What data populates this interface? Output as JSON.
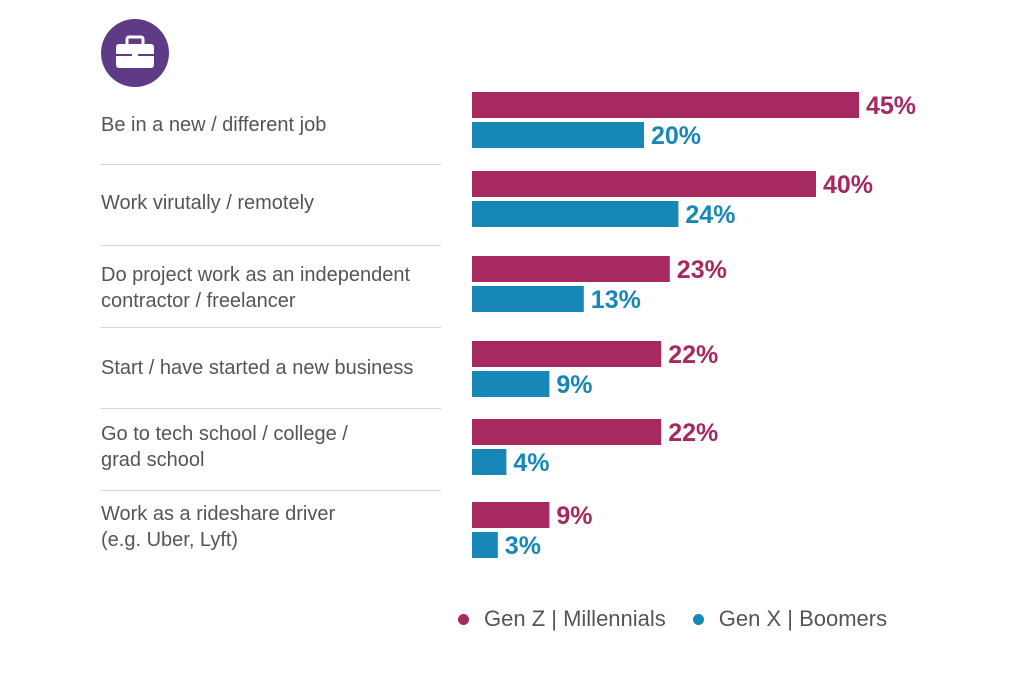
{
  "colors": {
    "series_a": "#a6295f",
    "series_b": "#1787b8",
    "icon_bg": "#5e3a87"
  },
  "icon": "briefcase-icon",
  "chart_data": {
    "type": "bar",
    "orientation": "horizontal",
    "categories": [
      "Be in a new / different job",
      "Work virutally / remotely",
      "Do project work as an independent\ncontractor / freelancer",
      "Start / have started a new business",
      "Go to tech school / college /\ngrad school",
      "Work as a rideshare driver\n(e.g. Uber, Lyft)"
    ],
    "series": [
      {
        "name": "Gen Z  |  Millennials",
        "values": [
          45,
          40,
          23,
          22,
          22,
          9
        ],
        "labels": [
          "45%",
          "40%",
          "23%",
          "22%",
          "22%",
          "9%"
        ]
      },
      {
        "name": "Gen X  |  Boomers",
        "values": [
          20,
          24,
          13,
          9,
          4,
          3
        ],
        "labels": [
          "20%",
          "24%",
          "13%",
          "9%",
          "4%",
          "3%"
        ]
      }
    ],
    "xlim": [
      0,
      45
    ],
    "grid": false,
    "legend_position": "bottom-right",
    "title": "",
    "xlabel": "",
    "ylabel": ""
  }
}
